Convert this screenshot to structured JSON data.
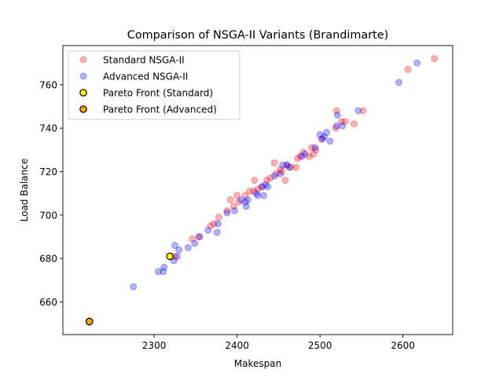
{
  "chart_data": {
    "type": "scatter",
    "title": "Comparison of NSGA-II Variants (Brandimarte)",
    "xlabel": "Makespan",
    "ylabel": "Load Balance",
    "xlim": [
      2190,
      2660
    ],
    "ylim": [
      645,
      778
    ],
    "xticks": [
      2300,
      2400,
      2500,
      2600
    ],
    "yticks": [
      660,
      680,
      700,
      720,
      740,
      760
    ],
    "legend_position": "top-left",
    "grid": false,
    "series": [
      {
        "name": "Standard NSGA-II",
        "color": "#ff0000",
        "alpha": 0.3,
        "x": [
          2638,
          2606,
          2552,
          2541,
          2530,
          2526,
          2520,
          2519,
          2502,
          2495,
          2492,
          2490,
          2487,
          2480,
          2476,
          2473,
          2471,
          2465,
          2460,
          2458,
          2454,
          2452,
          2447,
          2445,
          2440,
          2436,
          2430,
          2425,
          2421,
          2420,
          2415,
          2410,
          2402,
          2400,
          2396,
          2392,
          2388,
          2378,
          2372,
          2368,
          2355,
          2346,
          2325,
          2320,
          2222
        ],
        "y": [
          772,
          767,
          748,
          742,
          743,
          743,
          748,
          740,
          735,
          730,
          728,
          731,
          727,
          729,
          727,
          726,
          722,
          722,
          723,
          716,
          720,
          721,
          719,
          724,
          717,
          716,
          713,
          712,
          716,
          711,
          711,
          709,
          706,
          709,
          704,
          707,
          702,
          699,
          696,
          695,
          690,
          689,
          681,
          681,
          651
        ]
      },
      {
        "name": "Advanced NSGA-II",
        "color": "#0000ff",
        "alpha": 0.3,
        "x": [
          2617,
          2595,
          2546,
          2527,
          2521,
          2520,
          2512,
          2508,
          2505,
          2503,
          2500,
          2494,
          2482,
          2478,
          2463,
          2460,
          2455,
          2452,
          2445,
          2437,
          2434,
          2432,
          2430,
          2425,
          2423,
          2413,
          2411,
          2410,
          2405,
          2397,
          2388,
          2377,
          2376,
          2365,
          2354,
          2349,
          2341,
          2330,
          2328,
          2325,
          2324,
          2312,
          2311,
          2305,
          2275
        ],
        "y": [
          770,
          761,
          748,
          741,
          746,
          741,
          734,
          738,
          736,
          735,
          737,
          731,
          728,
          727,
          722,
          723,
          723,
          719,
          718,
          713,
          714,
          709,
          713,
          709,
          710,
          707,
          704,
          706,
          707,
          702,
          701,
          696,
          692,
          693,
          690,
          687,
          685,
          684,
          681,
          686,
          679,
          676,
          674,
          674,
          667
        ]
      },
      {
        "name": "Pareto Front (Standard)",
        "color": "#ffff00",
        "edge": "#000000",
        "x": [
          2222,
          2319
        ],
        "y": [
          651,
          681
        ]
      },
      {
        "name": "Pareto Front (Advanced)",
        "color": "#ffa500",
        "edge": "#000000",
        "x": [
          2222
        ],
        "y": [
          651
        ]
      }
    ]
  }
}
